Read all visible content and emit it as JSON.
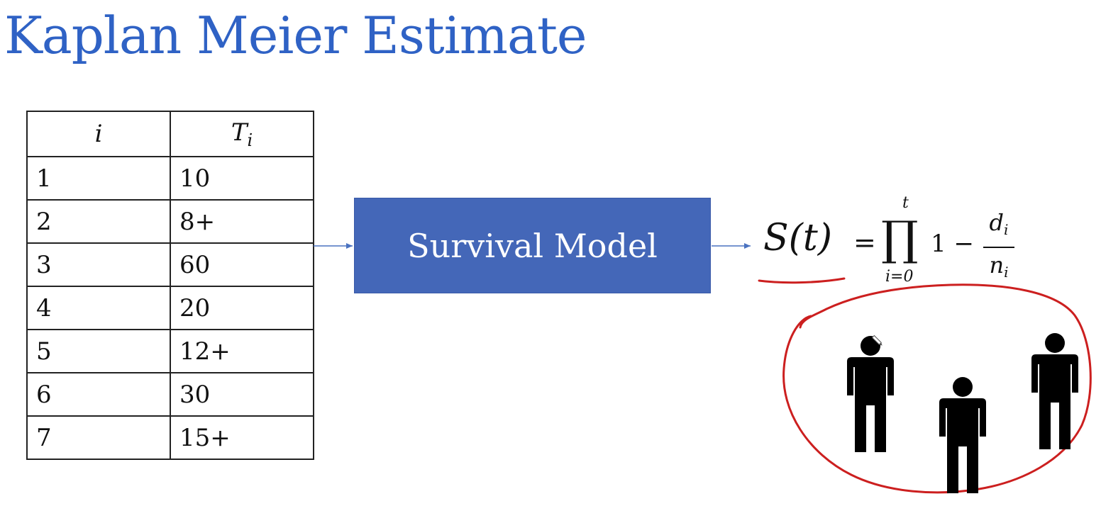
{
  "title": "Kaplan Meier Estimate",
  "table": {
    "headers": [
      "i",
      "T",
      "i"
    ],
    "rows": [
      {
        "i": "1",
        "t": "10"
      },
      {
        "i": "2",
        "t": "8+"
      },
      {
        "i": "3",
        "t": "60"
      },
      {
        "i": "4",
        "t": "20"
      },
      {
        "i": "5",
        "t": "12+"
      },
      {
        "i": "6",
        "t": "30"
      },
      {
        "i": "7",
        "t": "15+"
      }
    ]
  },
  "model_box": {
    "label": "Survival Model",
    "color": "#4467b8"
  },
  "formula": {
    "lhs": "S(t)",
    "equals": "=",
    "product": "∏",
    "upper": "t",
    "lower": "i=0",
    "one_minus": "1 −",
    "numerator": "d",
    "numerator_sub": "i",
    "denominator": "n",
    "denominator_sub": "i"
  },
  "annotation": {
    "ink_color": "#cc1f1f",
    "people_icons": [
      "person-icon",
      "person-icon",
      "person-icon"
    ]
  },
  "colors": {
    "title": "#2f62c5",
    "arrow": "#4a72c0"
  }
}
